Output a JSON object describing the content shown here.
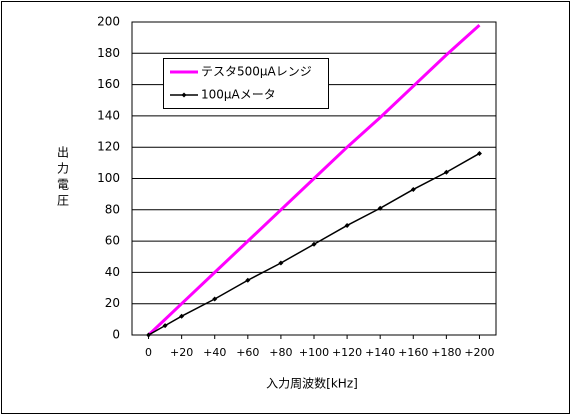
{
  "chart_data": {
    "type": "line",
    "x_label": "入力周波数[kHz]",
    "y_label": "出力電圧",
    "x": [
      0,
      10,
      20,
      40,
      60,
      80,
      100,
      120,
      140,
      160,
      180,
      200
    ],
    "series": [
      {
        "name": "テスタ500μAレンジ",
        "color": "#ff00ff",
        "values": [
          0,
          10,
          20,
          40,
          60,
          80,
          100,
          120,
          139,
          159,
          179,
          198
        ]
      },
      {
        "name": "100μAメータ",
        "color": "#000000",
        "values": [
          0,
          6,
          12,
          23,
          35,
          46,
          58,
          70,
          81,
          93,
          104,
          116
        ]
      }
    ],
    "xlim": [
      -10,
      210
    ],
    "xticks": [
      0,
      {
        "value": 20,
        "label": "+20"
      },
      {
        "value": 40,
        "label": "+40"
      },
      {
        "value": 60,
        "label": "+60"
      },
      {
        "value": 80,
        "label": "+80"
      },
      {
        "value": 100,
        "label": "+100"
      },
      {
        "value": 120,
        "label": "+120"
      },
      {
        "value": 140,
        "label": "+140"
      },
      {
        "value": 160,
        "label": "+160"
      },
      {
        "value": 180,
        "label": "+180"
      },
      {
        "value": 200,
        "label": "+200"
      }
    ],
    "ylim": [
      0,
      200
    ],
    "yticks": [
      0,
      20,
      40,
      60,
      80,
      100,
      120,
      140,
      160,
      180,
      200
    ],
    "grid": true,
    "legend": "top-left"
  }
}
